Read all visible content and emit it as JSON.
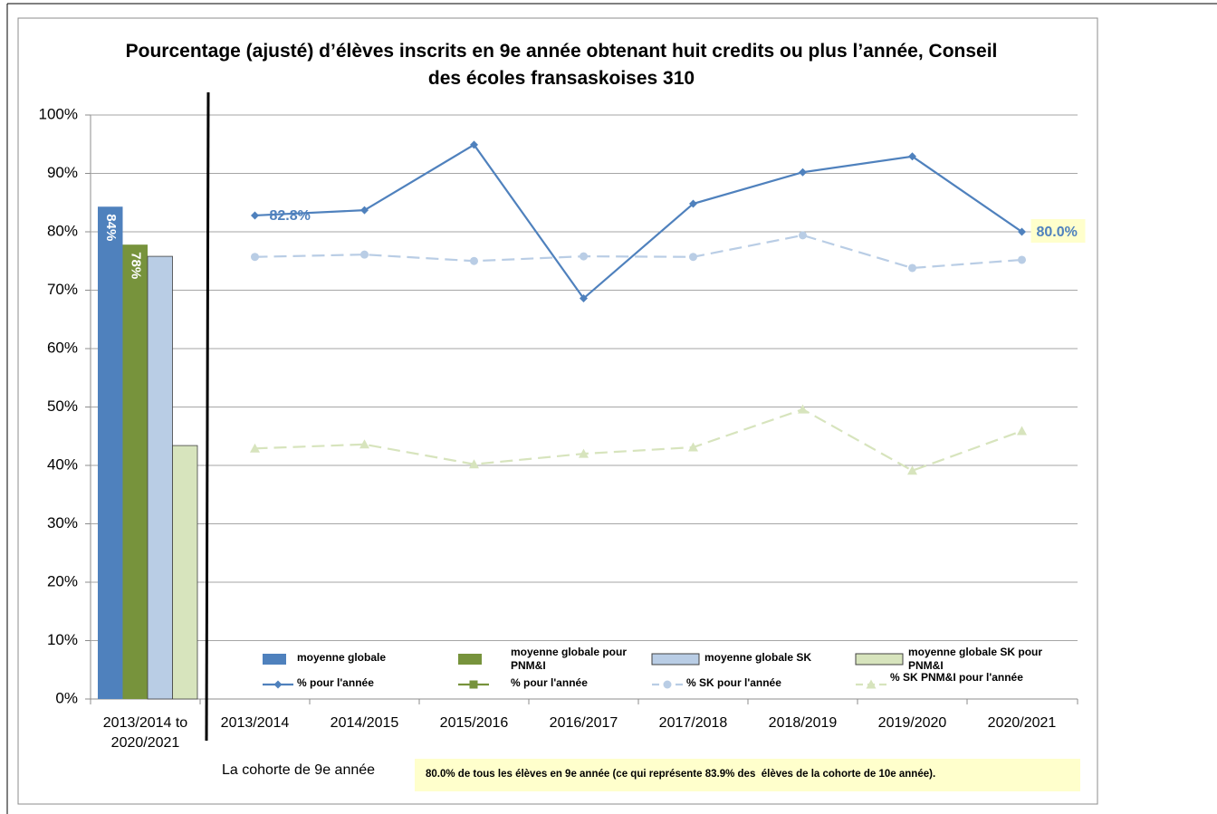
{
  "chart_data": {
    "type": "bar",
    "title": "Pourcentage (ajusté) d’élèves inscrits en 9e année obtenant huit credits ou plus l’année, Conseil des écoles fransaskoises 310",
    "x_label": "La cohorte de 9e année",
    "annotation": "80.0% de tous les élèves en 9e année (ce qui représente 83.9% des  élèves de la cohorte de 10e année).",
    "categories": [
      "2013/2014 to 2020/2021",
      "2013/2014",
      "2014/2015",
      "2015/2016",
      "2016/2017",
      "2017/2018",
      "2018/2019",
      "2019/2020",
      "2020/2021"
    ],
    "series": [
      {
        "name": "moyenne globale",
        "type": "bar",
        "color": "#4f81bd",
        "values": [
          84.3,
          null,
          null,
          null,
          null,
          null,
          null,
          null,
          null
        ],
        "value_labels": [
          "84%",
          null,
          null,
          null,
          null,
          null,
          null,
          null,
          null
        ]
      },
      {
        "name": "moyenne globale pour PNM&I",
        "type": "bar",
        "color": "#77933c",
        "values": [
          77.8,
          null,
          null,
          null,
          null,
          null,
          null,
          null,
          null
        ],
        "value_labels": [
          "78%",
          null,
          null,
          null,
          null,
          null,
          null,
          null,
          null
        ]
      },
      {
        "name": "moyenne globale SK",
        "type": "bar",
        "color": "#b9cde5",
        "values": [
          75.8,
          null,
          null,
          null,
          null,
          null,
          null,
          null,
          null
        ]
      },
      {
        "name": "moyenne globale SK pour PNM&I",
        "type": "bar",
        "color": "#d7e4bd",
        "values": [
          43.4,
          null,
          null,
          null,
          null,
          null,
          null,
          null,
          null
        ]
      },
      {
        "name": "% pour l'année",
        "type": "line",
        "marker": "diamond",
        "dashed": false,
        "color": "#4f81bd",
        "values": [
          null,
          82.8,
          83.7,
          94.9,
          68.6,
          84.8,
          90.2,
          92.9,
          80.0
        ],
        "value_labels": [
          null,
          "82.8%",
          null,
          null,
          null,
          null,
          null,
          null,
          "80.0%"
        ]
      },
      {
        "name": "% pour l'année",
        "type": "line",
        "marker": "square",
        "dashed": false,
        "color": "#77933c",
        "values": [
          null,
          null,
          null,
          null,
          null,
          null,
          null,
          null,
          null
        ]
      },
      {
        "name": "% SK pour l'année",
        "type": "line",
        "marker": "circle",
        "dashed": true,
        "color": "#b9cde5",
        "values": [
          null,
          75.7,
          76.1,
          75.0,
          75.8,
          75.7,
          79.4,
          73.8,
          75.2
        ]
      },
      {
        "name": "% SK PNM&I pour l'année",
        "type": "line",
        "marker": "triangle",
        "dashed": true,
        "color": "#d7e4bd",
        "values": [
          null,
          42.9,
          43.6,
          40.2,
          42.0,
          43.1,
          49.6,
          39.1,
          45.9
        ]
      }
    ],
    "ylim": [
      0,
      100
    ],
    "yticks": [
      {
        "value": 0,
        "label": "0%"
      },
      {
        "value": 10,
        "label": "10%"
      },
      {
        "value": 20,
        "label": "20%"
      },
      {
        "value": 30,
        "label": "30%"
      },
      {
        "value": 40,
        "label": "40%"
      },
      {
        "value": 50,
        "label": "50%"
      },
      {
        "value": 60,
        "label": "60%"
      },
      {
        "value": 70,
        "label": "70%"
      },
      {
        "value": 80,
        "label": "80%"
      },
      {
        "value": 90,
        "label": "90%"
      },
      {
        "value": 100,
        "label": "100%"
      }
    ],
    "grid": true,
    "legend": "bottom"
  }
}
